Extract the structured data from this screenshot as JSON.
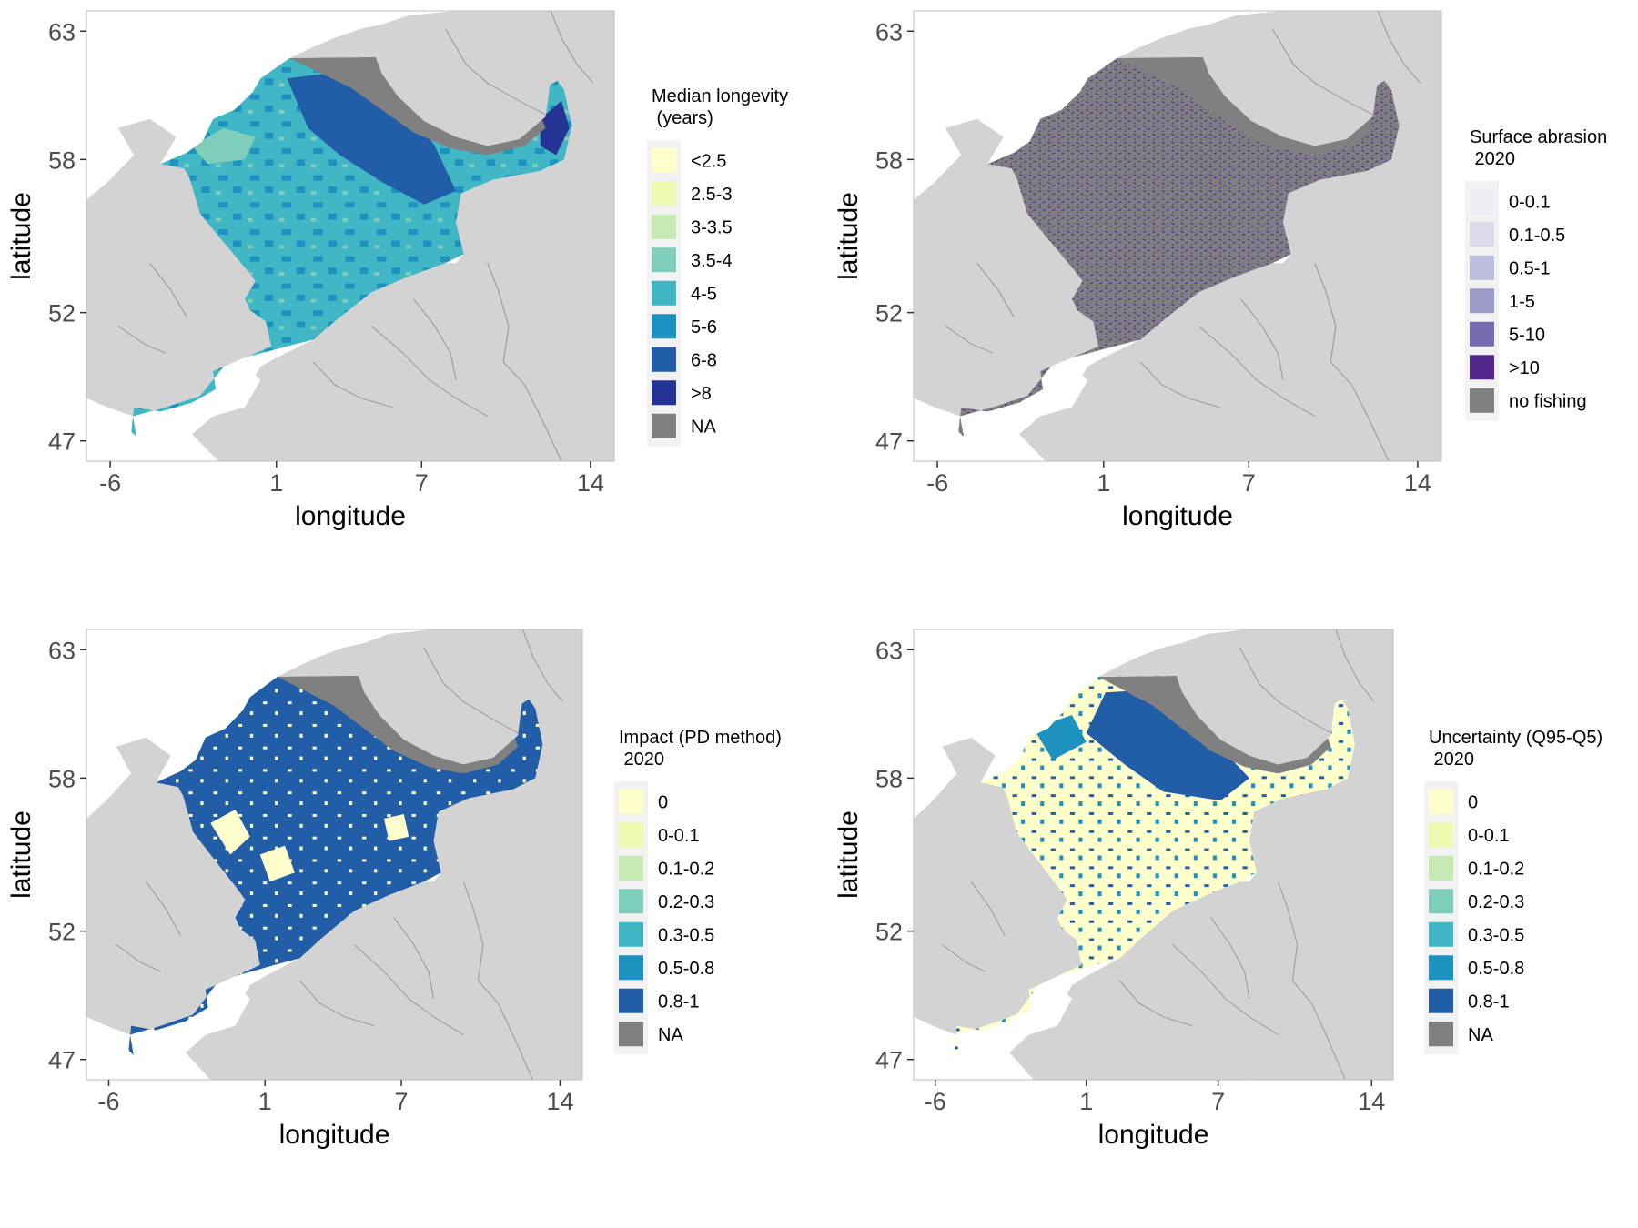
{
  "figure": {
    "xlabel": "longitude",
    "ylabel": "latitude",
    "x_ticks": [
      "-6",
      "1",
      "7",
      "14"
    ],
    "y_ticks": [
      "63",
      "58",
      "52",
      "47"
    ]
  },
  "colors": {
    "land": "#d3d3d3",
    "border_line": "#9a9a9a",
    "sea_background": "#ffffff",
    "na_fill": "#808080",
    "legend_key_bg": "#f2f2f2"
  },
  "panels": [
    {
      "id": "longevity",
      "legend_title_lines": [
        "Median longevity",
        " (years)"
      ],
      "legend": [
        {
          "label": "<2.5",
          "color": "#ffffcc"
        },
        {
          "label": "2.5-3",
          "color": "#edf8b1"
        },
        {
          "label": "3-3.5",
          "color": "#c7e9b4"
        },
        {
          "label": "3.5-4",
          "color": "#7fcdbb"
        },
        {
          "label": "4-5",
          "color": "#41b6c4"
        },
        {
          "label": "5-6",
          "color": "#1d91c0"
        },
        {
          "label": "6-8",
          "color": "#225ea8"
        },
        {
          "label": ">8",
          "color": "#253494"
        },
        {
          "label": "NA",
          "color": "#808080"
        }
      ]
    },
    {
      "id": "abrasion",
      "legend_title_lines": [
        "Surface abrasion",
        " 2020"
      ],
      "legend": [
        {
          "label": "0-0.1",
          "color": "#efedf5"
        },
        {
          "label": "0.1-0.5",
          "color": "#dadaeb"
        },
        {
          "label": "0.5-1",
          "color": "#bcbddc"
        },
        {
          "label": "1-5",
          "color": "#9e9ac8"
        },
        {
          "label": "5-10",
          "color": "#756bb1"
        },
        {
          "label": ">10",
          "color": "#54278f"
        },
        {
          "label": "no fishing",
          "color": "#808080"
        }
      ]
    },
    {
      "id": "impact",
      "legend_title_lines": [
        "Impact (PD method)",
        " 2020"
      ],
      "legend": [
        {
          "label": "0",
          "color": "#ffffcc"
        },
        {
          "label": "0-0.1",
          "color": "#edf8b1"
        },
        {
          "label": "0.1-0.2",
          "color": "#c7e9b4"
        },
        {
          "label": "0.2-0.3",
          "color": "#7fcdbb"
        },
        {
          "label": "0.3-0.5",
          "color": "#41b6c4"
        },
        {
          "label": "0.5-0.8",
          "color": "#1d91c0"
        },
        {
          "label": "0.8-1",
          "color": "#225ea8"
        },
        {
          "label": "NA",
          "color": "#808080"
        }
      ]
    },
    {
      "id": "uncertainty",
      "legend_title_lines": [
        "Uncertainty (Q95-Q5)",
        " 2020"
      ],
      "legend": [
        {
          "label": "0",
          "color": "#ffffcc"
        },
        {
          "label": "0-0.1",
          "color": "#edf8b1"
        },
        {
          "label": "0.1-0.2",
          "color": "#c7e9b4"
        },
        {
          "label": "0.2-0.3",
          "color": "#7fcdbb"
        },
        {
          "label": "0.3-0.5",
          "color": "#41b6c4"
        },
        {
          "label": "0.5-0.8",
          "color": "#1d91c0"
        },
        {
          "label": "0.8-1",
          "color": "#225ea8"
        },
        {
          "label": "NA",
          "color": "#808080"
        }
      ]
    }
  ]
}
